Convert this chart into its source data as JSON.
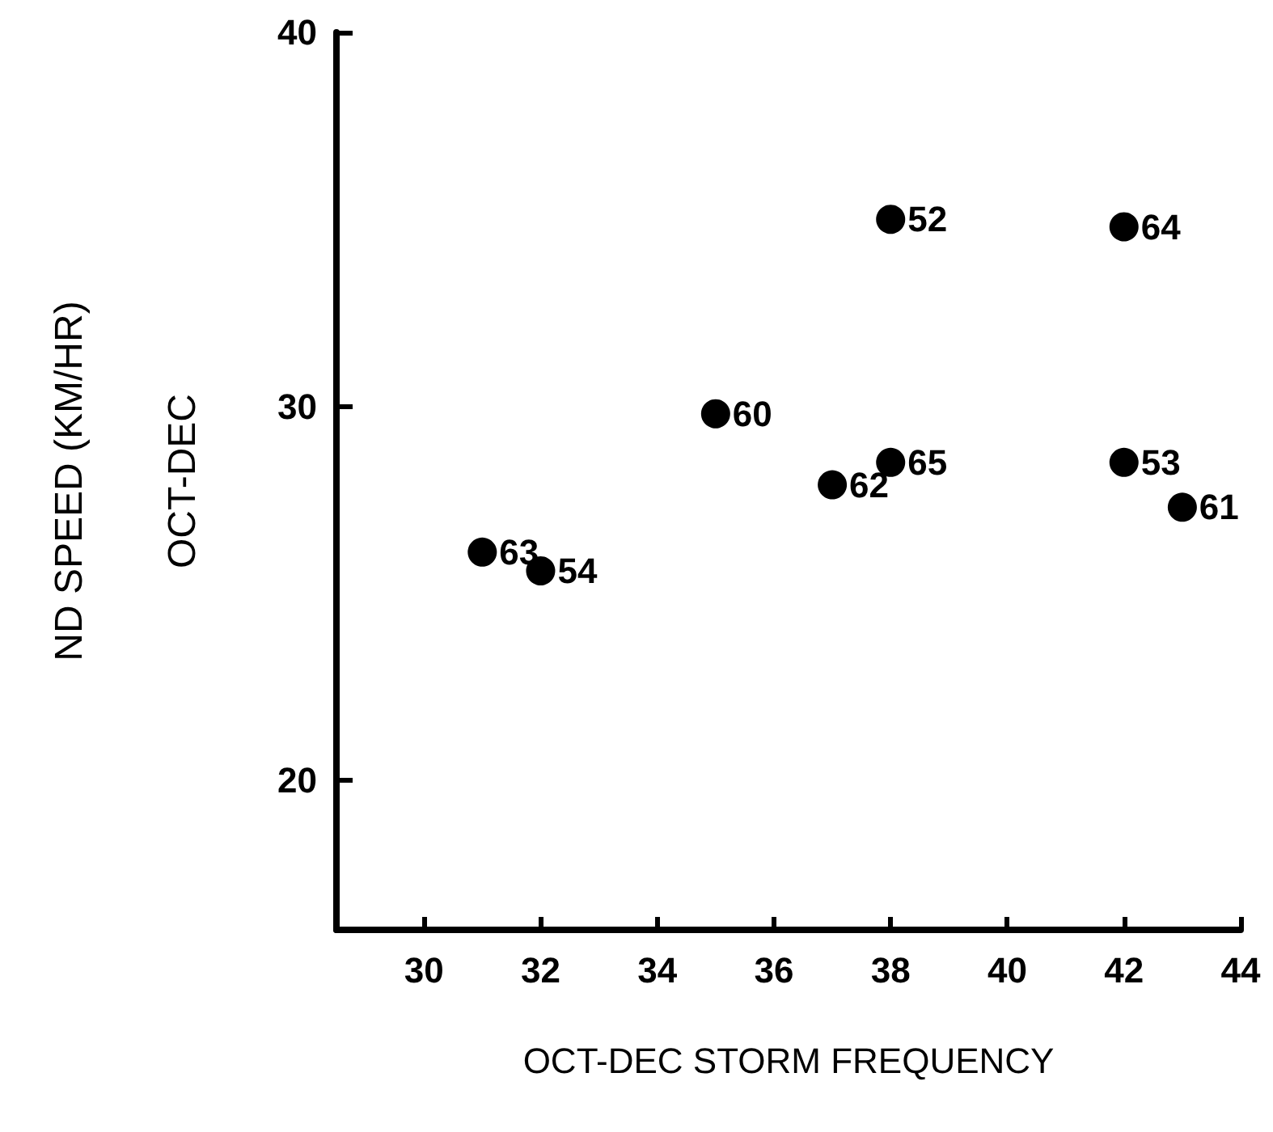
{
  "chart_data": {
    "type": "scatter",
    "xlabel": "OCT-DEC STORM FREQUENCY",
    "ylabel": "ND SPEED (KM/HR)\nOCT-DEC",
    "x": [
      31,
      32,
      35,
      37,
      38,
      38,
      42,
      42,
      43
    ],
    "values": [
      26.1,
      25.6,
      29.8,
      27.9,
      28.5,
      35,
      34.8,
      28.5,
      27.3
    ],
    "annotations": [
      {
        "text": "63",
        "x": 31,
        "y": 26.1
      },
      {
        "text": "54",
        "x": 32,
        "y": 25.6
      },
      {
        "text": "60",
        "x": 35,
        "y": 29.8
      },
      {
        "text": "62",
        "x": 37,
        "y": 27.9
      },
      {
        "text": "65",
        "x": 38,
        "y": 28.5
      },
      {
        "text": "52",
        "x": 38,
        "y": 35
      },
      {
        "text": "64",
        "x": 42,
        "y": 34.8
      },
      {
        "text": "53",
        "x": 42,
        "y": 28.5
      },
      {
        "text": "61",
        "x": 43,
        "y": 27.3
      }
    ],
    "color": "#000000",
    "marker": "circle",
    "grid": false,
    "xlim": [
      28.5,
      44
    ],
    "xticks": [
      30,
      32,
      34,
      36,
      38,
      40,
      42,
      44
    ],
    "ylim": [
      16,
      40
    ],
    "yticks": [
      20,
      30,
      40
    ]
  }
}
